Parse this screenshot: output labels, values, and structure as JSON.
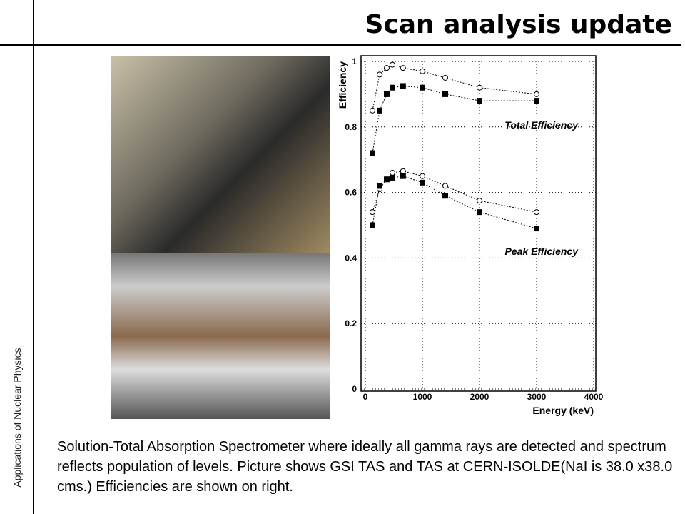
{
  "header": {
    "title": "Scan analysis update"
  },
  "sidebar": {
    "text": "Applications of Nuclear Physics"
  },
  "caption": {
    "text": "Solution-Total Absorption Spectrometer where ideally all gamma rays are detected and spectrum reflects population of levels. Picture shows GSI TAS and TAS at CERN-ISOLDE(NaI is 38.0 x38.0 cms.) Efficiencies are shown on right."
  },
  "chart_data": {
    "type": "scatter",
    "x_label": "Energy (keV)",
    "y_label": "Efficiency",
    "xlim": [
      0,
      4000
    ],
    "ylim": [
      0,
      1
    ],
    "xticks": [
      0,
      1000,
      2000,
      3000,
      4000
    ],
    "yticks": [
      0,
      0.2,
      0.4,
      0.6,
      0.8,
      1
    ],
    "grid": true,
    "annotations": [
      "Total Efficiency",
      "Peak Efficiency"
    ],
    "series": [
      {
        "color": "#000000",
        "marker": "circle-open",
        "x": [
          125,
          250,
          375,
          475,
          660,
          1000,
          1400,
          2000,
          3000
        ],
        "values": [
          0.85,
          0.96,
          0.98,
          0.99,
          0.98,
          0.97,
          0.95,
          0.92,
          0.9
        ]
      },
      {
        "color": "#000000",
        "marker": "square-filled",
        "x": [
          125,
          250,
          375,
          475,
          660,
          1000,
          1400,
          2000,
          3000
        ],
        "values": [
          0.72,
          0.85,
          0.9,
          0.92,
          0.925,
          0.92,
          0.9,
          0.88,
          0.88
        ]
      },
      {
        "color": "#000000",
        "marker": "circle-open",
        "x": [
          125,
          250,
          375,
          475,
          660,
          1000,
          1400,
          2000,
          3000
        ],
        "values": [
          0.54,
          0.61,
          0.64,
          0.66,
          0.665,
          0.65,
          0.62,
          0.575,
          0.54
        ]
      },
      {
        "color": "#000000",
        "marker": "square-filled",
        "x": [
          125,
          250,
          375,
          475,
          660,
          1000,
          1400,
          2000,
          3000
        ],
        "values": [
          0.5,
          0.62,
          0.64,
          0.645,
          0.65,
          0.63,
          0.59,
          0.54,
          0.49
        ]
      }
    ]
  }
}
